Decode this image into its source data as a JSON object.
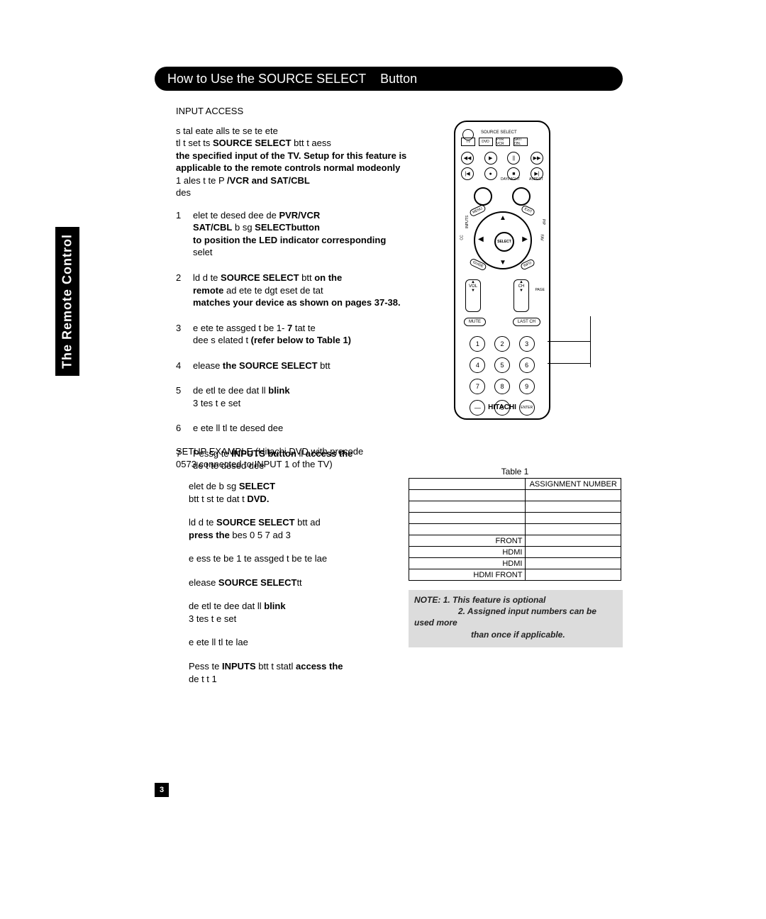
{
  "header": {
    "title_a": "How to Use the SOURCE SELECT",
    "title_b": "Button"
  },
  "sidebar_label": "The Remote Control",
  "page_number": "3",
  "section_head": "INPUT ACCESS",
  "intro": {
    "l1": "s tal eate alls te se   te ete",
    "l2a": "tl t set ts ",
    "l2b": "SOURCE SELECT",
    "l2c": " btt t aess ",
    "l3": "the specified input of the TV.  Setup for this feature is",
    "l4a": "applicable to the remote controls normal mode",
    "l4b": "only",
    "l5a": "1  ales  t  te   P          ",
    "l5b": "/VCR and SAT/CBL",
    "l6": "des"
  },
  "steps": [
    {
      "n": "1",
      "body": [
        {
          "t": "elet te desed dee de "
        },
        {
          "b": "PVR/VCR"
        },
        {
          "br": 1
        },
        {
          "b": "SAT/CBL"
        },
        {
          "t": " b sg                    "
        },
        {
          "b": "SELECT"
        },
        {
          "b": "button"
        },
        {
          "br": 1
        },
        {
          "b": "to position the LED indicator corresponding"
        },
        {
          "br": 1
        },
        {
          "t": "selet"
        }
      ]
    },
    {
      "n": "2",
      "body": [
        {
          "t": "ld d te "
        },
        {
          "b": "SOURCE SELECT"
        },
        {
          "t": " btt "
        },
        {
          "b": "on the"
        },
        {
          "br": 1
        },
        {
          "b": "remote"
        },
        {
          "t": " ad ete te  dgt eset de tat"
        },
        {
          "br": 1
        },
        {
          "b": "matches your device as shown on pages 37-38."
        }
      ]
    },
    {
      "n": "3",
      "body": [
        {
          "t": "e ete te assged t be 1-          "
        },
        {
          "b": "7"
        },
        {
          "t": " tat te"
        },
        {
          "br": 1
        },
        {
          "t": "dee s elated t "
        },
        {
          "b": "(refer below to Table 1)"
        }
      ]
    },
    {
      "n": "4",
      "body": [
        {
          "t": "elease "
        },
        {
          "b": "the SOURCE SELECT"
        },
        {
          "t": " btt"
        }
      ]
    },
    {
      "n": "5",
      "body": [
        {
          "t": " de etl te dee  dat ll              "
        },
        {
          "b": "blink"
        },
        {
          "br": 1
        },
        {
          "t": " 3 tes t  e set"
        }
      ]
    },
    {
      "n": "6",
      "body": [
        {
          "t": "e ete ll  tl te desed dee"
        }
      ]
    },
    {
      "n": "7",
      "body": [
        {
          "t": "Pessg te "
        },
        {
          "b": "INPUTS button"
        },
        {
          "t": " ll  "
        },
        {
          "b": "access the"
        },
        {
          "br": 1
        },
        {
          "t": "de t  te desed dee"
        }
      ]
    }
  ],
  "setup": {
    "head1": "SETUP EXAMPLE (Hitachi DVD with precode",
    "head2": "0573 connected to INPUT 1 of the TV)",
    "p1a": "elet  de b sg                           ",
    "p1b": "SELECT",
    "p1c": "btt t st te  dat t                      ",
    "p1d": "DVD.",
    "p2a": "ld d te ",
    "p2b": "SOURCE SELECT",
    "p2c": " btt ad ",
    "p2d": "press the",
    "p2e": " bes 0 5 7 ad 3",
    "p3": "e ess te be 1   te assged t   be  te  lae",
    "p4a": "elease ",
    "p4b": "SOURCE SELECT",
    "p4c": "tt",
    "p5a": " de etl te dee  dat ll                       ",
    "p5b": "blink",
    "p5c": " 3 tes t  e set",
    "p6": "e ete ll  tl te  lae",
    "p7a": "Pess te ",
    "p7b": "INPUTS",
    "p7c": " btt t statl ",
    "p7d": "access the",
    "p7e": "de t     t 1"
  },
  "table": {
    "caption": "Table 1",
    "col_header": "ASSIGNMENT NUMBER",
    "rows": [
      {
        "label": "",
        "num": ""
      },
      {
        "label": "",
        "num": ""
      },
      {
        "label": "",
        "num": ""
      },
      {
        "label": "",
        "num": ""
      },
      {
        "label": "FRONT",
        "num": ""
      },
      {
        "label": "HDMI",
        "num": ""
      },
      {
        "label": "HDMI",
        "num": ""
      },
      {
        "label": "HDMI  FRONT",
        "num": ""
      }
    ]
  },
  "note": {
    "pre": "NOTE:",
    "n1": "1.  This feature is optional",
    "n2": "2.  Assigned input numbers can be used more",
    "n2b": "than once if applicable."
  },
  "remote": {
    "source_select": "SOURCE SELECT",
    "modes": [
      "TV",
      "DVD",
      "PVR VCR",
      "SAT/ CBL",
      ""
    ],
    "aspect1": "DAY/NIGHT",
    "aspect2": "ASPECT",
    "select": "SELECT",
    "menu1": "MENU",
    "menu2": "EXIT",
    "menu3": "GUIDE",
    "menu4": "INFO",
    "cc1": "INPUTS",
    "cc2": "PIP",
    "cc3": "CC",
    "cc4": "FAV",
    "vol_up": "▲",
    "vol": "VOL",
    "vol_dn": "▼",
    "ch_up": "▲",
    "ch": "CH",
    "ch_dn": "▼",
    "page": "PAGE",
    "mute": "MUTE",
    "last": "LAST CH",
    "nums": [
      "1",
      "2",
      "3",
      "4",
      "5",
      "6",
      "7",
      "8",
      "9",
      "—",
      "0",
      "ENTER"
    ],
    "brand": "HITACHI"
  },
  "colors": {
    "black": "#000000",
    "grey": "#dcdcdc"
  }
}
